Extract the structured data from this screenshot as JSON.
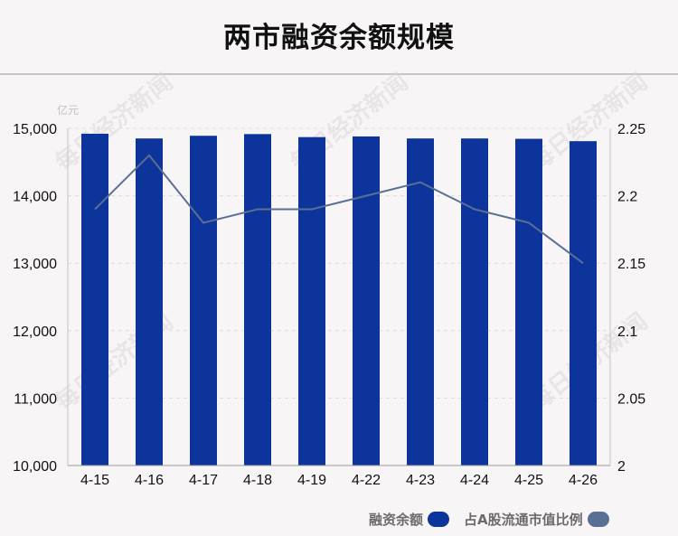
{
  "chart_data": {
    "type": "bar",
    "title": "两市融资余额规模",
    "left_axis_unit": "亿元",
    "categories": [
      "4-15",
      "4-16",
      "4-17",
      "4-18",
      "4-19",
      "4-22",
      "4-23",
      "4-24",
      "4-25",
      "4-26"
    ],
    "series": [
      {
        "name": "融资余额",
        "type": "bar",
        "axis": "left",
        "color": "#0d349a",
        "values": [
          14920,
          14850,
          14890,
          14915,
          14870,
          14880,
          14850,
          14850,
          14845,
          14810
        ]
      },
      {
        "name": "占A股流通市值比例",
        "type": "line",
        "axis": "right",
        "color": "#5a6f95",
        "values": [
          2.19,
          2.23,
          2.18,
          2.19,
          2.19,
          2.2,
          2.21,
          2.19,
          2.18,
          2.15
        ]
      }
    ],
    "left_axis": {
      "ylim": [
        10000,
        15000
      ],
      "ticks": [
        10000,
        11000,
        12000,
        13000,
        14000,
        15000
      ],
      "tick_labels": [
        "10,000",
        "11,000",
        "12,000",
        "13,000",
        "14,000",
        "15,000"
      ]
    },
    "right_axis": {
      "ylim": [
        2,
        2.25
      ],
      "ticks": [
        2,
        2.05,
        2.1,
        2.15,
        2.2,
        2.25
      ],
      "tick_labels": [
        "2",
        "2.05",
        "2.1",
        "2.15",
        "2.2",
        "2.25"
      ]
    },
    "grid": true,
    "legend_position": "bottom-right"
  },
  "watermark": "每日经济新闻"
}
